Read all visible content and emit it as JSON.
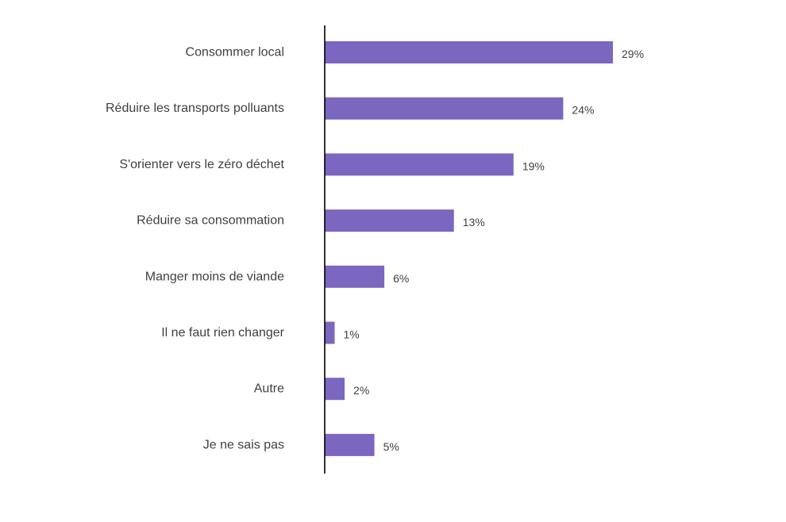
{
  "chart_data": {
    "type": "bar",
    "orientation": "horizontal",
    "categories": [
      "Consommer local",
      "Réduire les transports polluants",
      "S'orienter vers le zéro déchet",
      "Réduire sa consommation",
      "Manger moins de viande",
      "Il ne faut rien changer",
      "Autre",
      "Je ne sais pas"
    ],
    "values": [
      29,
      24,
      19,
      13,
      6,
      1,
      2,
      5
    ],
    "value_labels": [
      "29%",
      "24%",
      "19%",
      "13%",
      "6%",
      "1%",
      "2%",
      "5%"
    ],
    "unit": "%",
    "xlim": [
      0,
      29
    ],
    "grid": false,
    "legend": "none"
  },
  "colors": {
    "bar": "#7b66c0",
    "axis": "#000000",
    "text": "#404040"
  }
}
